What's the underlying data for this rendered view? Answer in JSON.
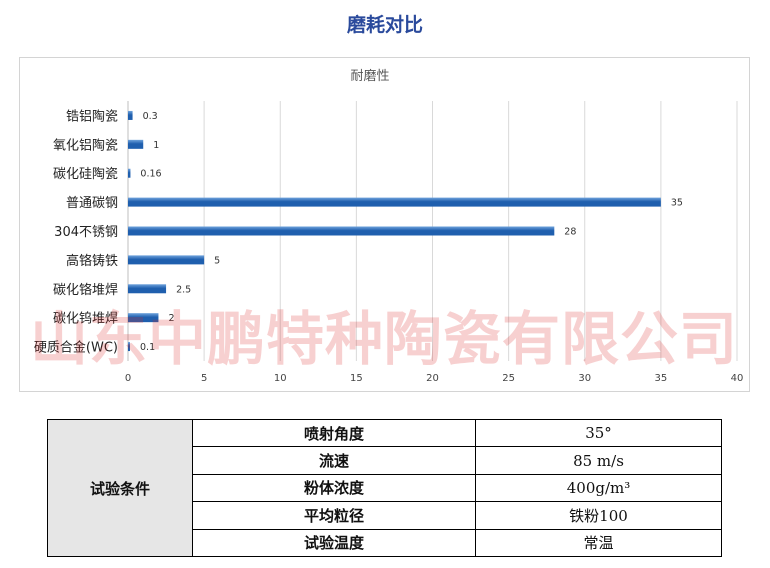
{
  "page": {
    "title": "磨耗对比"
  },
  "chart_data": {
    "type": "bar",
    "orientation": "horizontal",
    "title": "耐磨性",
    "categories": [
      "锆铝陶瓷",
      "氧化铝陶瓷",
      "碳化硅陶瓷",
      "普通碳钢",
      "304不锈钢",
      "高铬铸铁",
      "碳化铬堆焊",
      "碳化钨堆焊",
      "硬质合金(WC)"
    ],
    "values": [
      0.3,
      1,
      0.16,
      35,
      28,
      5,
      2.5,
      2,
      0.1
    ],
    "value_labels": [
      "0.3",
      "1",
      "0.16",
      "35",
      "28",
      "5",
      "2.5",
      "2",
      "0.1"
    ],
    "xlim": [
      0,
      40
    ],
    "xticks": [
      "0",
      "5",
      "10",
      "15",
      "20",
      "25",
      "30",
      "35",
      "40"
    ],
    "xlabel": "",
    "ylabel": "",
    "grid": "vertical",
    "bar_color": "#1f5fae",
    "bar_highlight": "#6fa3dc"
  },
  "watermark": {
    "text": "山东中鹏特种陶瓷有限公司",
    "color": "#dc2828"
  },
  "conditions": {
    "group_label": "试验条件",
    "rows": [
      {
        "param": "喷射角度",
        "value": "35°"
      },
      {
        "param": "流速",
        "value": "85 m/s"
      },
      {
        "param": "粉体浓度",
        "value": "400g/m³"
      },
      {
        "param": "平均粒径",
        "value": "铁粉100"
      },
      {
        "param": "试验温度",
        "value": "常温"
      }
    ]
  }
}
